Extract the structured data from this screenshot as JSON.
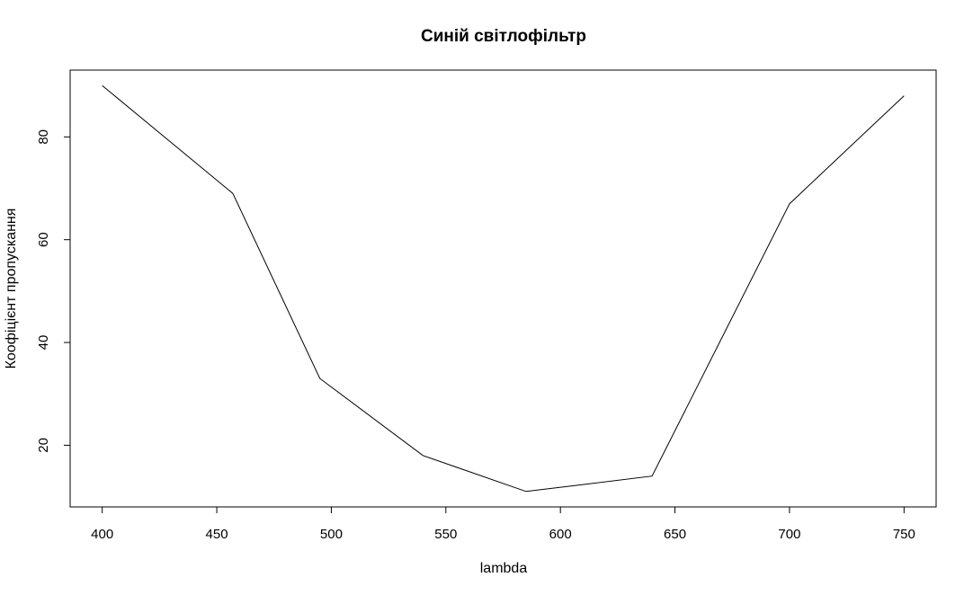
{
  "chart_data": {
    "type": "line",
    "title": "Синій світлофільтр",
    "xlabel": "lambda",
    "ylabel": "Коофіцієнт пропускання",
    "x": [
      400,
      457,
      495,
      540,
      585,
      640,
      700,
      750
    ],
    "series": [
      {
        "values": [
          90,
          69,
          33,
          18,
          11,
          14,
          67,
          88
        ]
      }
    ],
    "xlim": [
      386,
      764
    ],
    "ylim": [
      8,
      93
    ],
    "xticks": [
      "400",
      "450",
      "500",
      "550",
      "600",
      "650",
      "700",
      "750"
    ],
    "yticks": [
      "20",
      "40",
      "60",
      "80"
    ],
    "grid": false,
    "line_color": "#000000"
  }
}
